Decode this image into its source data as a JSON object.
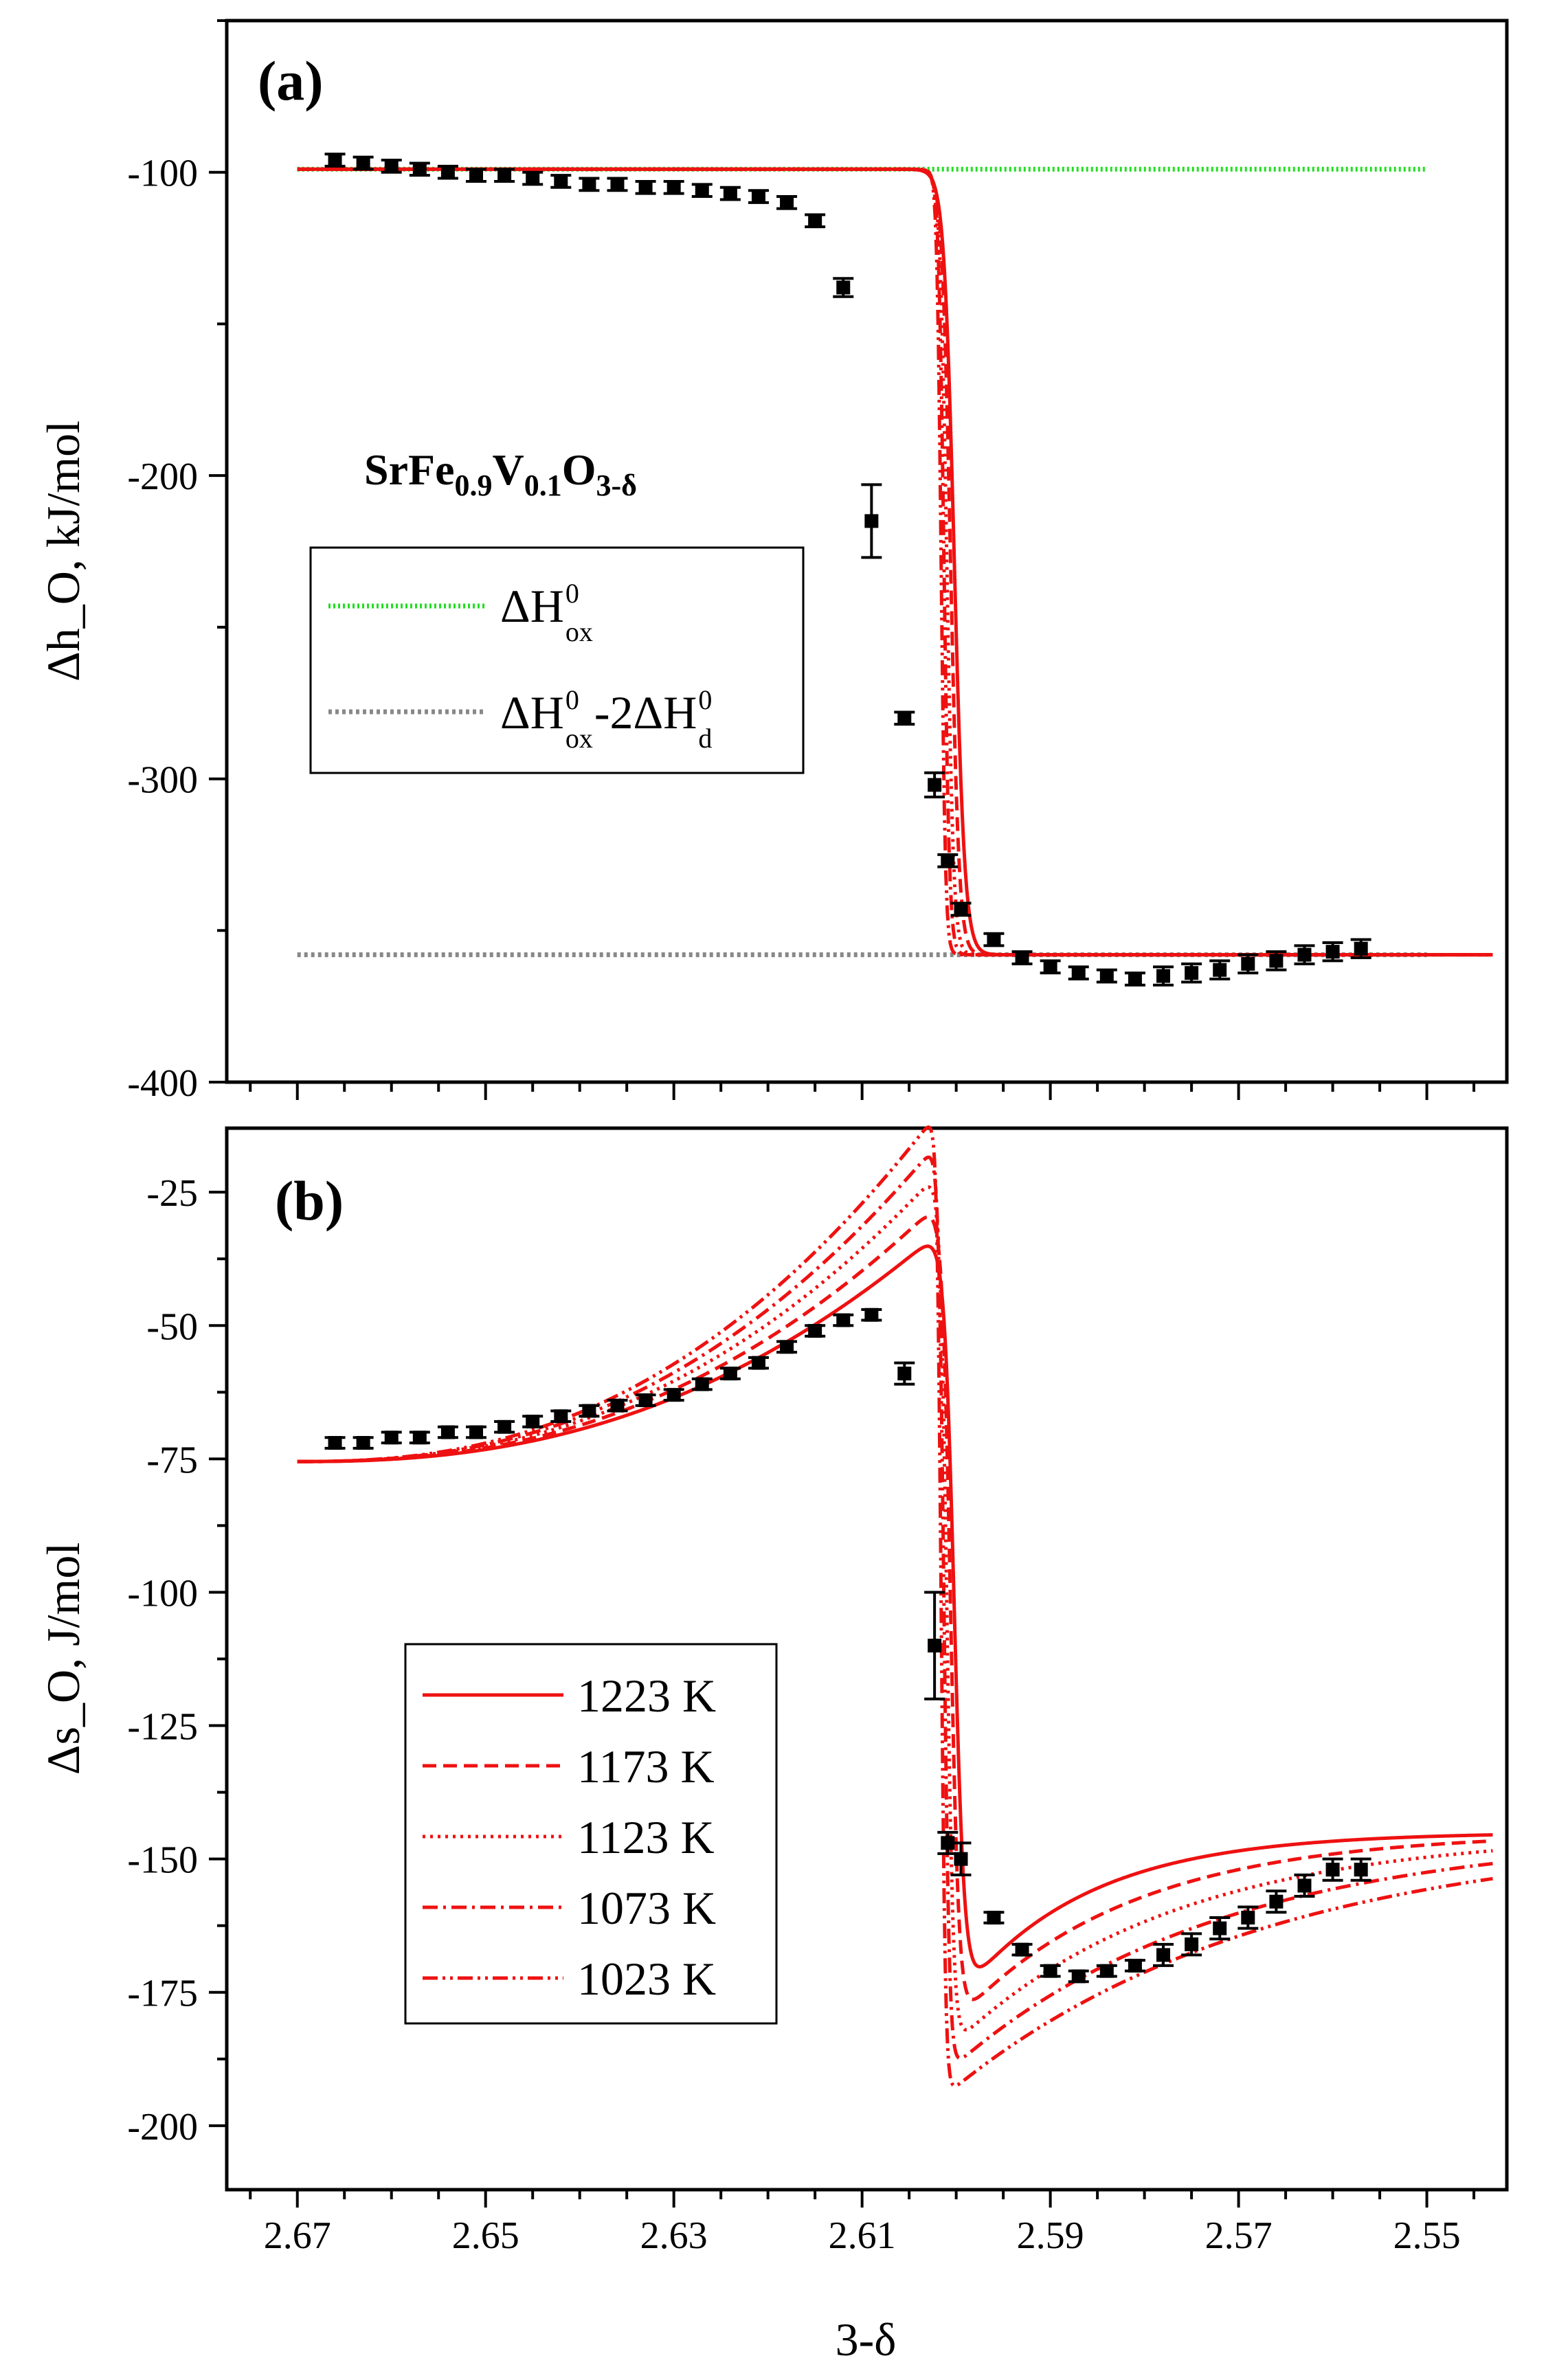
{
  "chart_data": [
    {
      "panel": "(a)",
      "type": "line",
      "ylabel": "Δh_O, kJ/mol",
      "ylim": [
        -400,
        -50
      ],
      "yticks": [
        -100,
        -200,
        -300,
        -400
      ],
      "xlim": [
        2.6775,
        2.5415
      ],
      "xticks": [
        2.67,
        2.65,
        2.63,
        2.61,
        2.59,
        2.57,
        2.55
      ],
      "compound": "SrFe0.9V0.1O3-δ",
      "formula_parts": {
        "b1": "SrFe",
        "s1": "0.9",
        "b2": "V",
        "s2": "0.1",
        "b3": "O",
        "s3": "3-δ"
      },
      "legend": [
        {
          "name": "ΔH⁰ox",
          "color": "#22dd22",
          "style": "dot",
          "parts": {
            "main": "ΔH",
            "sup": "0",
            "sub": "ox",
            "main2": "",
            "sup2": "",
            "sub2": ""
          }
        },
        {
          "name": "ΔH⁰ox-2ΔH⁰d",
          "color": "#888888",
          "style": "dot",
          "parts": {
            "main": "ΔH",
            "sup": "0",
            "sub": "ox",
            "main2": "-2ΔH",
            "sup2": "0",
            "sub2": "d"
          }
        }
      ],
      "reference_lines": [
        {
          "name": "ΔH⁰ox",
          "y": -99,
          "x_range": [
            2.67,
            2.55
          ],
          "color": "#22dd22"
        },
        {
          "name": "ΔH⁰ox-2ΔH⁰d",
          "y": -358,
          "x_range": [
            2.67,
            2.55
          ],
          "color": "#888888"
        }
      ],
      "experimental_points": {
        "x": [
          2.666,
          2.663,
          2.66,
          2.657,
          2.654,
          2.651,
          2.648,
          2.645,
          2.642,
          2.639,
          2.636,
          2.633,
          2.63,
          2.627,
          2.624,
          2.621,
          2.618,
          2.615,
          2.612,
          2.609,
          2.6055,
          2.6023,
          2.6009,
          2.5995,
          2.596,
          2.593,
          2.59,
          2.587,
          2.584,
          2.581,
          2.578,
          2.575,
          2.572,
          2.569,
          2.566,
          2.563,
          2.56,
          2.557
        ],
        "y": [
          -96,
          -97,
          -98,
          -99,
          -100,
          -101,
          -101,
          -102,
          -103,
          -104,
          -104,
          -105,
          -105,
          -106,
          -107,
          -108,
          -110,
          -116,
          -138,
          -215,
          -280,
          -302,
          -327,
          -343,
          -353,
          -359,
          -362,
          -364,
          -365,
          -366,
          -365,
          -364,
          -363,
          -361,
          -360,
          -358,
          -357,
          -356
        ],
        "yerr": [
          2,
          2,
          2,
          2,
          2,
          2,
          2,
          2,
          2,
          2,
          2,
          2,
          2,
          2,
          2,
          2,
          2,
          2,
          3,
          12,
          2,
          4,
          2,
          2,
          2,
          2,
          2,
          2,
          2,
          2,
          3,
          3,
          3,
          3,
          3,
          3,
          3,
          3
        ]
      },
      "model_curves": [
        {
          "T": 1223,
          "x0": 2.6002,
          "w": 0.0011,
          "style": "solid"
        },
        {
          "T": 1173,
          "x0": 2.6006,
          "w": 0.0009,
          "style": "dash"
        },
        {
          "T": 1123,
          "x0": 2.601,
          "w": 0.00072,
          "style": "dot"
        },
        {
          "T": 1073,
          "x0": 2.6013,
          "w": 0.00058,
          "style": "dashdot"
        },
        {
          "T": 1023,
          "x0": 2.6016,
          "w": 0.00046,
          "style": "dashdotdot"
        }
      ],
      "model_levels": {
        "high": -99,
        "low": -358
      }
    },
    {
      "panel": "(b)",
      "type": "line",
      "ylabel": "Δs_O, J/mol",
      "ylim": [
        -212,
        -13
      ],
      "yticks": [
        -25,
        -50,
        -75,
        -100,
        -125,
        -150,
        -175,
        -200
      ],
      "xlabel": "3-δ",
      "xlim": [
        2.6775,
        2.5415
      ],
      "xticks": [
        2.67,
        2.65,
        2.63,
        2.61,
        2.59,
        2.57,
        2.55
      ],
      "legend": [
        {
          "name": "1223 K",
          "style": "solid"
        },
        {
          "name": "1173 K",
          "style": "dash"
        },
        {
          "name": "1123 K",
          "style": "dot"
        },
        {
          "name": "1073 K",
          "style": "dashdot"
        },
        {
          "name": "1023 K",
          "style": "dashdotdot"
        }
      ],
      "experimental_points": {
        "x": [
          2.666,
          2.663,
          2.66,
          2.657,
          2.654,
          2.651,
          2.648,
          2.645,
          2.642,
          2.639,
          2.636,
          2.633,
          2.63,
          2.627,
          2.624,
          2.621,
          2.618,
          2.615,
          2.612,
          2.609,
          2.6055,
          2.6023,
          2.6009,
          2.5995,
          2.596,
          2.593,
          2.59,
          2.587,
          2.584,
          2.581,
          2.578,
          2.575,
          2.572,
          2.569,
          2.566,
          2.563,
          2.56,
          2.557
        ],
        "y": [
          -72,
          -72,
          -71,
          -71,
          -70,
          -70,
          -69,
          -68,
          -67,
          -66,
          -65,
          -64,
          -63,
          -61,
          -59,
          -57,
          -54,
          -51,
          -49,
          -48,
          -59,
          -110,
          -147,
          -150,
          -161,
          -167,
          -171,
          -172,
          -171,
          -170,
          -168,
          -166,
          -163,
          -161,
          -158,
          -155,
          -152,
          -152
        ],
        "yerr": [
          1,
          1,
          1,
          1,
          1,
          1,
          1,
          1,
          1,
          1,
          1,
          1,
          1,
          1,
          1,
          1,
          1,
          1,
          1,
          1,
          2,
          10,
          2,
          3,
          1,
          1,
          1,
          1,
          1,
          1,
          2,
          2,
          2,
          2,
          2,
          2,
          2,
          2
        ]
      },
      "model_curves": [
        {
          "T": 1223,
          "x0": 2.6002,
          "w": 0.0011,
          "style": "solid"
        },
        {
          "T": 1173,
          "x0": 2.6006,
          "w": 0.0009,
          "style": "dash"
        },
        {
          "T": 1123,
          "x0": 2.601,
          "w": 0.00072,
          "style": "dot"
        },
        {
          "T": 1073,
          "x0": 2.6013,
          "w": 0.00058,
          "style": "dashdot"
        },
        {
          "T": 1023,
          "x0": 2.6016,
          "w": 0.00046,
          "style": "dashdotdot"
        }
      ],
      "model_params": {
        "x_start": 2.67,
        "x_end": 2.543,
        "left": [
          -75.5,
          -30
        ],
        "right": [
          -172,
          -145
        ]
      }
    }
  ],
  "colors": {
    "model": "#ee1111",
    "green": "#22dd22",
    "gray": "#888888",
    "points": "#000000"
  }
}
